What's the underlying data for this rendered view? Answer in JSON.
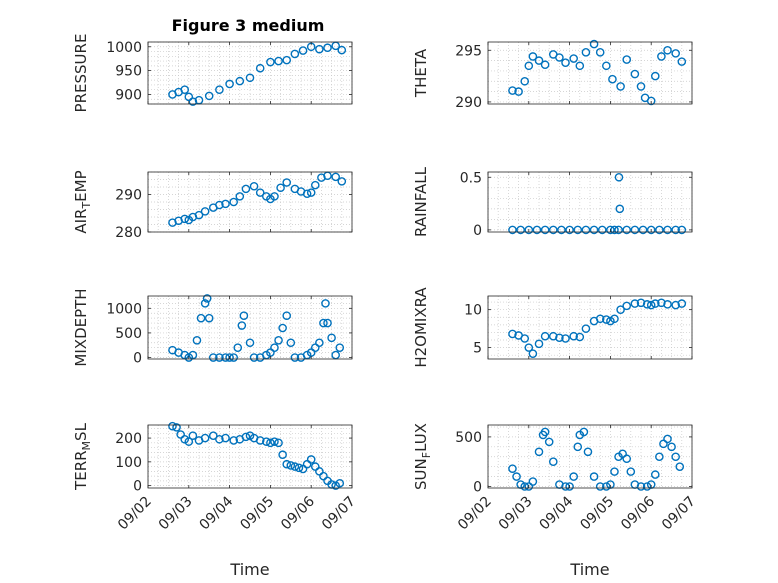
{
  "chart_data": [
    {
      "type": "scatter",
      "title": "Figure 3 medium",
      "ylabel": "PRESSURE",
      "xlabel": "",
      "ylim": [
        880,
        1010
      ],
      "yticks": [
        900,
        950,
        1000
      ],
      "xlim": [
        "09/02",
        "09/07"
      ],
      "grid": true,
      "series": [
        {
          "x": [
            2.6,
            2.75,
            2.9,
            3.0,
            3.1,
            3.25,
            3.5,
            3.75,
            4.0,
            4.25,
            4.5,
            4.75,
            5.0,
            5.2,
            5.4,
            5.6,
            5.8,
            6.0,
            6.2,
            6.4,
            6.6,
            6.75
          ],
          "y": [
            900,
            905,
            910,
            895,
            885,
            888,
            897,
            910,
            922,
            928,
            935,
            955,
            968,
            970,
            972,
            985,
            992,
            1000,
            995,
            998,
            1002,
            993
          ]
        }
      ]
    },
    {
      "type": "scatter",
      "title": "",
      "ylabel": "THETA",
      "xlabel": "",
      "ylim": [
        289.8,
        295.8
      ],
      "yticks": [
        290,
        295
      ],
      "xlim": [
        "09/02",
        "09/07"
      ],
      "grid": true,
      "series": [
        {
          "x": [
            2.6,
            2.75,
            2.9,
            3.0,
            3.1,
            3.25,
            3.4,
            3.6,
            3.75,
            3.9,
            4.1,
            4.25,
            4.4,
            4.6,
            4.75,
            4.9,
            5.05,
            5.25,
            5.4,
            5.6,
            5.75,
            5.85,
            6.0,
            6.1,
            6.25,
            6.4,
            6.6,
            6.75
          ],
          "y": [
            291.1,
            291.0,
            292.0,
            293.5,
            294.4,
            294.0,
            293.6,
            294.6,
            294.3,
            293.8,
            294.2,
            293.5,
            294.8,
            295.6,
            294.8,
            293.5,
            292.2,
            291.5,
            294.1,
            292.7,
            291.5,
            290.4,
            290.1,
            292.5,
            294.4,
            295.0,
            294.7,
            293.9
          ]
        }
      ]
    },
    {
      "type": "scatter",
      "title": "",
      "ylabel": "AIR_TEMP",
      "xlabel": "",
      "ylim": [
        280,
        296
      ],
      "yticks": [
        280,
        290
      ],
      "xlim": [
        "09/02",
        "09/07"
      ],
      "grid": true,
      "series": [
        {
          "x": [
            2.6,
            2.75,
            2.9,
            3.0,
            3.1,
            3.25,
            3.4,
            3.6,
            3.75,
            3.9,
            4.1,
            4.25,
            4.4,
            4.6,
            4.75,
            4.9,
            5.0,
            5.1,
            5.25,
            5.4,
            5.6,
            5.75,
            5.9,
            6.0,
            6.1,
            6.25,
            6.4,
            6.6,
            6.75
          ],
          "y": [
            282.5,
            283.0,
            283.5,
            283.2,
            284.0,
            284.5,
            285.5,
            286.5,
            287.2,
            287.5,
            288.0,
            289.5,
            291.5,
            292.2,
            290.5,
            289.5,
            288.8,
            289.5,
            291.8,
            293.2,
            291.5,
            290.8,
            290.2,
            290.5,
            292.5,
            294.5,
            295.0,
            294.7,
            293.5
          ]
        }
      ]
    },
    {
      "type": "scatter",
      "title": "",
      "ylabel": "RAINFALL",
      "xlabel": "",
      "ylim": [
        -0.02,
        0.55
      ],
      "yticks": [
        0,
        0.5
      ],
      "xlim": [
        "09/02",
        "09/07"
      ],
      "grid": true,
      "series": [
        {
          "x": [
            2.6,
            2.8,
            3.0,
            3.2,
            3.4,
            3.6,
            3.8,
            4.0,
            4.2,
            4.4,
            4.6,
            4.8,
            5.0,
            5.1,
            5.2,
            5.4,
            5.6,
            5.8,
            6.0,
            6.2,
            6.4,
            6.6,
            6.75,
            5.21,
            5.23
          ],
          "y": [
            0,
            0,
            0,
            0,
            0,
            0,
            0,
            0,
            0,
            0,
            0,
            0,
            0,
            0,
            0,
            0,
            0,
            0,
            0,
            0,
            0,
            0,
            0,
            0.5,
            0.2
          ]
        }
      ]
    },
    {
      "type": "scatter",
      "title": "",
      "ylabel": "MIXDEPTH",
      "xlabel": "",
      "ylim": [
        -30,
        1250
      ],
      "yticks": [
        0,
        500,
        1000
      ],
      "xlim": [
        "09/02",
        "09/07"
      ],
      "grid": true,
      "series": [
        {
          "x": [
            2.6,
            2.75,
            2.9,
            3.0,
            3.1,
            3.2,
            3.3,
            3.4,
            3.45,
            3.5,
            3.6,
            3.75,
            3.9,
            4.0,
            4.1,
            4.2,
            4.3,
            4.35,
            4.5,
            4.6,
            4.75,
            4.9,
            5.0,
            5.1,
            5.2,
            5.3,
            5.4,
            5.5,
            5.6,
            5.75,
            5.9,
            6.0,
            6.1,
            6.2,
            6.3,
            6.35,
            6.4,
            6.5,
            6.6,
            6.7
          ],
          "y": [
            150,
            100,
            50,
            0,
            50,
            350,
            800,
            1100,
            1200,
            800,
            0,
            0,
            0,
            0,
            0,
            200,
            650,
            850,
            300,
            0,
            0,
            50,
            100,
            200,
            350,
            600,
            850,
            300,
            0,
            0,
            50,
            100,
            200,
            300,
            700,
            1100,
            700,
            400,
            50,
            200
          ]
        }
      ]
    },
    {
      "type": "scatter",
      "title": "",
      "ylabel": "H2OMIXRA",
      "xlabel": "",
      "ylim": [
        3.5,
        11.8
      ],
      "yticks": [
        5,
        10
      ],
      "xlim": [
        "09/02",
        "09/07"
      ],
      "grid": true,
      "series": [
        {
          "x": [
            2.6,
            2.75,
            2.9,
            3.0,
            3.1,
            3.25,
            3.4,
            3.6,
            3.75,
            3.9,
            4.1,
            4.25,
            4.4,
            4.6,
            4.75,
            4.9,
            5.0,
            5.1,
            5.25,
            5.4,
            5.6,
            5.75,
            5.9,
            6.0,
            6.1,
            6.25,
            6.4,
            6.6,
            6.75
          ],
          "y": [
            6.8,
            6.6,
            6.2,
            5.0,
            4.2,
            5.5,
            6.5,
            6.5,
            6.3,
            6.2,
            6.5,
            6.4,
            7.5,
            8.5,
            8.8,
            8.7,
            8.5,
            8.8,
            10.0,
            10.5,
            10.8,
            10.9,
            10.7,
            10.6,
            10.8,
            10.9,
            10.7,
            10.6,
            10.8
          ]
        }
      ]
    },
    {
      "type": "scatter",
      "title": "",
      "ylabel": "TERR_MSL",
      "xlabel": "Time",
      "ylim": [
        -10,
        255
      ],
      "yticks": [
        0,
        100,
        200
      ],
      "xlim": [
        "09/02",
        "09/07"
      ],
      "xticks": [
        "09/02",
        "09/03",
        "09/04",
        "09/05",
        "09/06",
        "09/07"
      ],
      "grid": true,
      "series": [
        {
          "x": [
            2.6,
            2.7,
            2.8,
            2.9,
            3.0,
            3.1,
            3.25,
            3.4,
            3.6,
            3.75,
            3.9,
            4.1,
            4.25,
            4.4,
            4.5,
            4.6,
            4.75,
            4.9,
            5.0,
            5.1,
            5.2,
            5.3,
            5.4,
            5.5,
            5.6,
            5.7,
            5.8,
            5.9,
            6.0,
            6.1,
            6.2,
            6.3,
            6.4,
            6.5,
            6.6,
            6.7
          ],
          "y": [
            250,
            245,
            215,
            195,
            185,
            210,
            190,
            200,
            210,
            195,
            200,
            190,
            195,
            205,
            210,
            200,
            190,
            185,
            180,
            185,
            180,
            130,
            90,
            85,
            80,
            75,
            70,
            90,
            110,
            80,
            60,
            40,
            20,
            5,
            0,
            10
          ]
        }
      ]
    },
    {
      "type": "scatter",
      "title": "",
      "ylabel": "SUN_FLUX",
      "xlabel": "Time",
      "ylim": [
        -15,
        620
      ],
      "yticks": [
        0,
        500
      ],
      "xlim": [
        "09/02",
        "09/07"
      ],
      "xticks": [
        "09/02",
        "09/03",
        "09/04",
        "09/05",
        "09/06",
        "09/07"
      ],
      "grid": true,
      "series": [
        {
          "x": [
            2.6,
            2.7,
            2.8,
            2.9,
            3.0,
            3.1,
            3.25,
            3.35,
            3.4,
            3.5,
            3.6,
            3.75,
            3.9,
            4.0,
            4.1,
            4.2,
            4.25,
            4.35,
            4.45,
            4.6,
            4.75,
            4.9,
            5.0,
            5.1,
            5.2,
            5.3,
            5.4,
            5.5,
            5.6,
            5.75,
            5.9,
            6.0,
            6.1,
            6.2,
            6.3,
            6.4,
            6.5,
            6.6,
            6.7
          ],
          "y": [
            180,
            100,
            20,
            0,
            0,
            50,
            350,
            520,
            550,
            450,
            250,
            20,
            0,
            0,
            100,
            400,
            520,
            550,
            350,
            100,
            0,
            0,
            20,
            150,
            300,
            330,
            280,
            150,
            20,
            0,
            0,
            20,
            120,
            300,
            430,
            480,
            400,
            300,
            200
          ]
        }
      ]
    }
  ]
}
